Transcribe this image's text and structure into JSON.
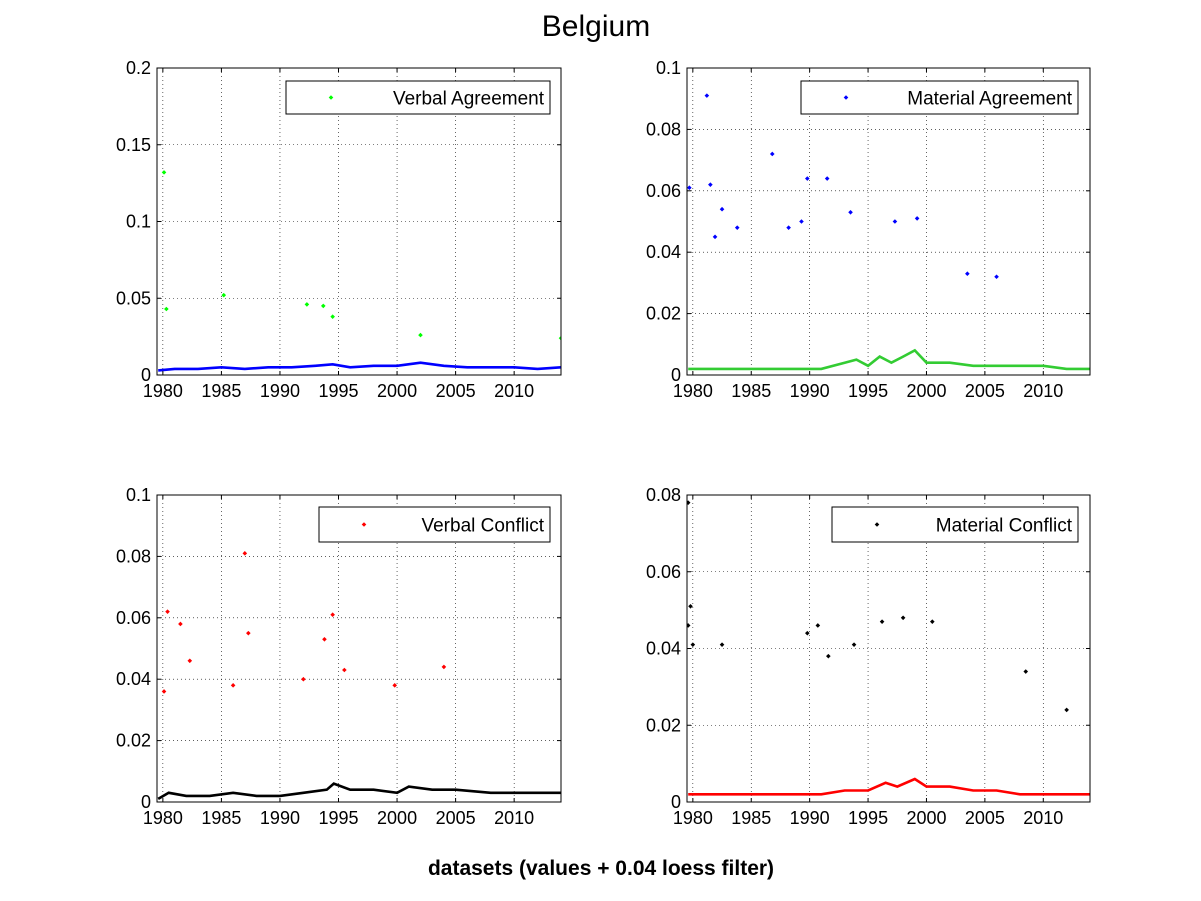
{
  "figure": {
    "title": "Belgium",
    "xlabel": "datasets (values + 0.04 loess filter)"
  },
  "chart_data": [
    {
      "type": "scatter",
      "legend": "Verbal Agreement",
      "legend_position": "top-right",
      "marker_color": "#00ff00",
      "smooth_color": "#0000ff",
      "xlim": [
        1979.5,
        2014
      ],
      "ylim": [
        0,
        0.2
      ],
      "xticks": [
        1980,
        1985,
        1990,
        1995,
        2000,
        2005,
        2010
      ],
      "yticks": [
        0,
        0.05,
        0.1,
        0.15,
        0.2
      ],
      "ytick_labels": [
        "0",
        "0.05",
        "0.1",
        "0.15",
        "0.2"
      ],
      "grid": true,
      "outliers": [
        [
          1980.1,
          0.132
        ],
        [
          1985.2,
          0.052
        ],
        [
          1992.3,
          0.046
        ],
        [
          1993.7,
          0.045
        ],
        [
          1980.3,
          0.043
        ],
        [
          1994.5,
          0.038
        ],
        [
          2002.0,
          0.026
        ],
        [
          2014.0,
          0.024
        ]
      ],
      "smooth": [
        [
          1979.6,
          0.003
        ],
        [
          1981,
          0.004
        ],
        [
          1983,
          0.004
        ],
        [
          1985,
          0.005
        ],
        [
          1987,
          0.004
        ],
        [
          1989,
          0.005
        ],
        [
          1991,
          0.005
        ],
        [
          1993,
          0.006
        ],
        [
          1994.5,
          0.007
        ],
        [
          1996,
          0.005
        ],
        [
          1998,
          0.006
        ],
        [
          2000,
          0.006
        ],
        [
          2002,
          0.008
        ],
        [
          2004,
          0.006
        ],
        [
          2006,
          0.005
        ],
        [
          2008,
          0.005
        ],
        [
          2010,
          0.005
        ],
        [
          2012,
          0.004
        ],
        [
          2014,
          0.005
        ]
      ],
      "noise": {
        "seed": 11,
        "count": 1600,
        "base": 0.012,
        "spread_start": 0.018,
        "spread_end": 0.009
      }
    },
    {
      "type": "scatter",
      "legend": "Material Agreement",
      "legend_position": "top-right",
      "marker_color": "#0000ff",
      "smooth_color": "#33cc33",
      "xlim": [
        1979.5,
        2014
      ],
      "ylim": [
        0,
        0.1
      ],
      "xticks": [
        1980,
        1985,
        1990,
        1995,
        2000,
        2005,
        2010
      ],
      "yticks": [
        0,
        0.02,
        0.04,
        0.06,
        0.08,
        0.1
      ],
      "ytick_labels": [
        "0",
        "0.02",
        "0.04",
        "0.06",
        "0.08",
        "0.1"
      ],
      "grid": true,
      "outliers": [
        [
          1981.2,
          0.091
        ],
        [
          1979.7,
          0.061
        ],
        [
          1981.5,
          0.062
        ],
        [
          1986.8,
          0.072
        ],
        [
          1989.8,
          0.064
        ],
        [
          1991.5,
          0.064
        ],
        [
          1997.3,
          0.05
        ],
        [
          1999.2,
          0.051
        ],
        [
          1989.3,
          0.05
        ],
        [
          1993.5,
          0.053
        ],
        [
          1983.8,
          0.048
        ],
        [
          2006.0,
          0.032
        ],
        [
          2003.5,
          0.033
        ],
        [
          1982.5,
          0.054
        ],
        [
          1988.2,
          0.048
        ],
        [
          1981.9,
          0.045
        ]
      ],
      "smooth": [
        [
          1979.6,
          0.002
        ],
        [
          1981,
          0.002
        ],
        [
          1983,
          0.002
        ],
        [
          1985,
          0.002
        ],
        [
          1987,
          0.002
        ],
        [
          1989,
          0.002
        ],
        [
          1991,
          0.002
        ],
        [
          1993,
          0.004
        ],
        [
          1994,
          0.005
        ],
        [
          1995,
          0.003
        ],
        [
          1996,
          0.006
        ],
        [
          1997,
          0.004
        ],
        [
          1998,
          0.006
        ],
        [
          1999,
          0.008
        ],
        [
          2000,
          0.004
        ],
        [
          2002,
          0.004
        ],
        [
          2004,
          0.003
        ],
        [
          2006,
          0.003
        ],
        [
          2008,
          0.003
        ],
        [
          2010,
          0.003
        ],
        [
          2012,
          0.002
        ],
        [
          2014,
          0.002
        ]
      ],
      "noise": {
        "seed": 23,
        "count": 2600,
        "base": 0.006,
        "spread_start": 0.03,
        "spread_end": 0.014
      }
    },
    {
      "type": "scatter",
      "legend": "Verbal Conflict",
      "legend_position": "top-right",
      "marker_color": "#ff0000",
      "smooth_color": "#000000",
      "xlim": [
        1979.5,
        2014
      ],
      "ylim": [
        0,
        0.1
      ],
      "xticks": [
        1980,
        1985,
        1990,
        1995,
        2000,
        2005,
        2010
      ],
      "yticks": [
        0,
        0.02,
        0.04,
        0.06,
        0.08,
        0.1
      ],
      "ytick_labels": [
        "0",
        "0.02",
        "0.04",
        "0.06",
        "0.08",
        "0.1"
      ],
      "grid": true,
      "outliers": [
        [
          1987.0,
          0.081
        ],
        [
          1980.4,
          0.062
        ],
        [
          1981.5,
          0.058
        ],
        [
          1994.5,
          0.061
        ],
        [
          1987.3,
          0.055
        ],
        [
          1993.8,
          0.053
        ],
        [
          2004.0,
          0.044
        ],
        [
          1982.3,
          0.046
        ],
        [
          1995.5,
          0.043
        ],
        [
          1992.0,
          0.04
        ],
        [
          1999.8,
          0.038
        ],
        [
          1986.0,
          0.038
        ],
        [
          1980.1,
          0.036
        ]
      ],
      "smooth": [
        [
          1979.6,
          0.001
        ],
        [
          1980.5,
          0.003
        ],
        [
          1982,
          0.002
        ],
        [
          1984,
          0.002
        ],
        [
          1986,
          0.003
        ],
        [
          1988,
          0.002
        ],
        [
          1990,
          0.002
        ],
        [
          1992,
          0.003
        ],
        [
          1994,
          0.004
        ],
        [
          1994.6,
          0.006
        ],
        [
          1996,
          0.004
        ],
        [
          1998,
          0.004
        ],
        [
          2000,
          0.003
        ],
        [
          2001,
          0.005
        ],
        [
          2003,
          0.004
        ],
        [
          2005,
          0.004
        ],
        [
          2008,
          0.003
        ],
        [
          2011,
          0.003
        ],
        [
          2014,
          0.003
        ]
      ],
      "noise": {
        "seed": 37,
        "count": 2600,
        "base": 0.008,
        "spread_start": 0.02,
        "spread_end": 0.008
      }
    },
    {
      "type": "scatter",
      "legend": "Material Conflict",
      "legend_position": "top-right",
      "marker_color": "#000000",
      "smooth_color": "#ff0000",
      "xlim": [
        1979.5,
        2014
      ],
      "ylim": [
        0,
        0.08
      ],
      "xticks": [
        1980,
        1985,
        1990,
        1995,
        2000,
        2005,
        2010
      ],
      "yticks": [
        0,
        0.02,
        0.04,
        0.06,
        0.08
      ],
      "ytick_labels": [
        "0",
        "0.02",
        "0.04",
        "0.06",
        "0.08"
      ],
      "grid": true,
      "outliers": [
        [
          1979.6,
          0.078
        ],
        [
          1979.8,
          0.051
        ],
        [
          1979.6,
          0.046
        ],
        [
          1980.0,
          0.041
        ],
        [
          1989.8,
          0.044
        ],
        [
          1990.7,
          0.046
        ],
        [
          1996.2,
          0.047
        ],
        [
          1998.0,
          0.048
        ],
        [
          2000.5,
          0.047
        ],
        [
          1982.5,
          0.041
        ],
        [
          1993.8,
          0.041
        ],
        [
          2008.5,
          0.034
        ],
        [
          1991.6,
          0.038
        ],
        [
          2012.0,
          0.024
        ]
      ],
      "smooth": [
        [
          1979.6,
          0.002
        ],
        [
          1981,
          0.002
        ],
        [
          1983,
          0.002
        ],
        [
          1985,
          0.002
        ],
        [
          1987,
          0.002
        ],
        [
          1989,
          0.002
        ],
        [
          1991,
          0.002
        ],
        [
          1993,
          0.003
        ],
        [
          1995,
          0.003
        ],
        [
          1996.5,
          0.005
        ],
        [
          1997.5,
          0.004
        ],
        [
          1999,
          0.006
        ],
        [
          2000,
          0.004
        ],
        [
          2002,
          0.004
        ],
        [
          2004,
          0.003
        ],
        [
          2006,
          0.003
        ],
        [
          2008,
          0.002
        ],
        [
          2010,
          0.002
        ],
        [
          2012,
          0.002
        ],
        [
          2014,
          0.002
        ]
      ],
      "noise": {
        "seed": 53,
        "count": 2600,
        "base": 0.006,
        "spread_start": 0.018,
        "spread_end": 0.01
      }
    }
  ]
}
